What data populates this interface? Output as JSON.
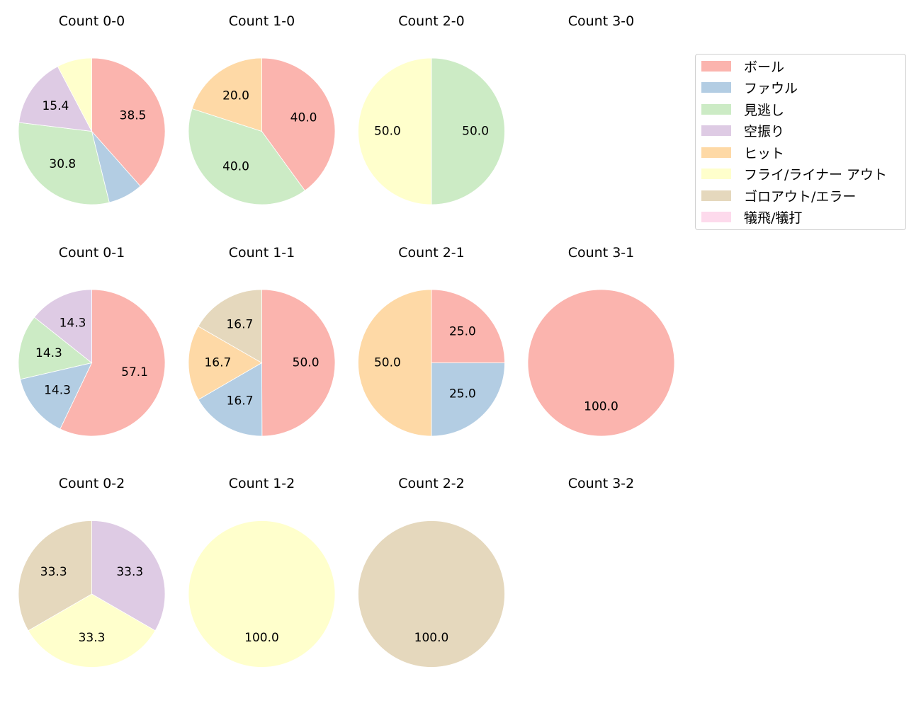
{
  "chart_data": {
    "type": "pie",
    "categories": [
      "ボール",
      "ファウル",
      "見逃し",
      "空振り",
      "ヒット",
      "フライ/ライナー アウト",
      "ゴロアウト/エラー",
      "犠飛/犠打"
    ],
    "colors": [
      "#fbb4ae",
      "#b3cde3",
      "#ccebc5",
      "#decbe4",
      "#fed9a6",
      "#ffffcc",
      "#e5d8bd",
      "#fddaec"
    ],
    "legend_position": "upper right",
    "charts": [
      {
        "title": "Count 0-0",
        "row": 0,
        "col": 0,
        "values": [
          38.5,
          7.7,
          30.8,
          15.4,
          0,
          7.7,
          0,
          0
        ],
        "labels": [
          "38.5",
          "",
          "30.8",
          "15.4",
          "",
          "",
          "",
          ""
        ]
      },
      {
        "title": "Count 1-0",
        "row": 0,
        "col": 1,
        "values": [
          40.0,
          0,
          40.0,
          0,
          20.0,
          0,
          0,
          0
        ],
        "labels": [
          "40.0",
          "",
          "40.0",
          "",
          "20.0",
          "",
          "",
          ""
        ]
      },
      {
        "title": "Count 2-0",
        "row": 0,
        "col": 2,
        "values": [
          0,
          0,
          50.0,
          0,
          0,
          50.0,
          0,
          0
        ],
        "labels": [
          "",
          "",
          "50.0",
          "",
          "",
          "50.0",
          "",
          ""
        ]
      },
      {
        "title": "Count 3-0",
        "row": 0,
        "col": 3,
        "values": [],
        "labels": []
      },
      {
        "title": "Count 0-1",
        "row": 1,
        "col": 0,
        "values": [
          57.1,
          14.3,
          14.3,
          14.3,
          0,
          0,
          0,
          0
        ],
        "labels": [
          "57.1",
          "14.3",
          "14.3",
          "14.3",
          "",
          "",
          "",
          ""
        ]
      },
      {
        "title": "Count 1-1",
        "row": 1,
        "col": 1,
        "values": [
          50.0,
          16.7,
          0,
          0,
          16.7,
          0,
          16.7,
          0
        ],
        "labels": [
          "50.0",
          "16.7",
          "",
          "",
          "16.7",
          "",
          "16.7",
          ""
        ]
      },
      {
        "title": "Count 2-1",
        "row": 1,
        "col": 2,
        "values": [
          25.0,
          25.0,
          0,
          0,
          50.0,
          0,
          0,
          0
        ],
        "labels": [
          "25.0",
          "25.0",
          "",
          "",
          "50.0",
          "",
          "",
          ""
        ]
      },
      {
        "title": "Count 3-1",
        "row": 1,
        "col": 3,
        "values": [
          100.0,
          0,
          0,
          0,
          0,
          0,
          0,
          0
        ],
        "labels": [
          "100.0",
          "",
          "",
          "",
          "",
          "",
          "",
          ""
        ]
      },
      {
        "title": "Count 0-2",
        "row": 2,
        "col": 0,
        "values": [
          0,
          0,
          0,
          33.3,
          0,
          33.3,
          33.3,
          0
        ],
        "labels": [
          "",
          "",
          "",
          "33.3",
          "",
          "33.3",
          "33.3",
          ""
        ]
      },
      {
        "title": "Count 1-2",
        "row": 2,
        "col": 1,
        "values": [
          0,
          0,
          0,
          0,
          0,
          100.0,
          0,
          0
        ],
        "labels": [
          "",
          "",
          "",
          "",
          "",
          "100.0",
          "",
          ""
        ]
      },
      {
        "title": "Count 2-2",
        "row": 2,
        "col": 2,
        "values": [
          0,
          0,
          0,
          0,
          0,
          0,
          100.0,
          0
        ],
        "labels": [
          "",
          "",
          "",
          "",
          "",
          "",
          "100.0",
          ""
        ]
      },
      {
        "title": "Count 3-2",
        "row": 2,
        "col": 3,
        "values": [],
        "labels": []
      }
    ]
  },
  "legend": {
    "items": [
      {
        "label": "ボール",
        "color": "#fbb4ae"
      },
      {
        "label": "ファウル",
        "color": "#b3cde3"
      },
      {
        "label": "見逃し",
        "color": "#ccebc5"
      },
      {
        "label": "空振り",
        "color": "#decbe4"
      },
      {
        "label": "ヒット",
        "color": "#fed9a6"
      },
      {
        "label": "フライ/ライナー アウト",
        "color": "#ffffcc"
      },
      {
        "label": "ゴロアウト/エラー",
        "color": "#e5d8bd"
      },
      {
        "label": "犠飛/犠打",
        "color": "#fddaec"
      }
    ]
  }
}
